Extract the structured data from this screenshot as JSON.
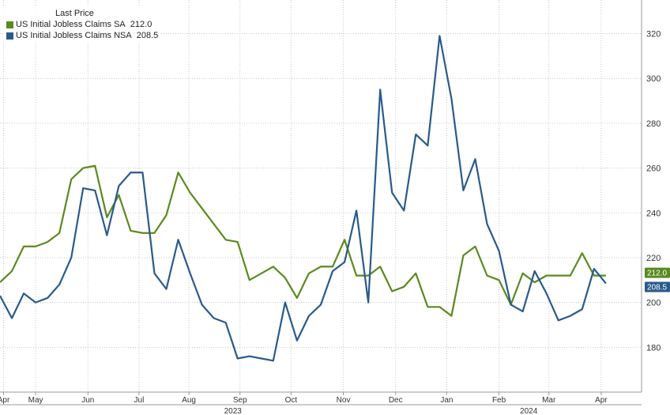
{
  "chart_data": {
    "type": "line",
    "legend_header": "Last Price",
    "legend_position": "top-left",
    "grid": true,
    "ylim": [
      160,
      335
    ],
    "yticks": [
      180,
      200,
      220,
      240,
      260,
      280,
      300,
      320
    ],
    "x_range": [
      0,
      54
    ],
    "months": [
      {
        "label": "Apr",
        "x": 0.3
      },
      {
        "label": "May",
        "x": 3.0
      },
      {
        "label": "Jun",
        "x": 7.4
      },
      {
        "label": "Jul",
        "x": 11.7
      },
      {
        "label": "Aug",
        "x": 15.9
      },
      {
        "label": "Sep",
        "x": 20.2
      },
      {
        "label": "Oct",
        "x": 24.5
      },
      {
        "label": "Nov",
        "x": 28.9
      },
      {
        "label": "Dec",
        "x": 33.3
      },
      {
        "label": "Jan",
        "x": 37.6
      },
      {
        "label": "Feb",
        "x": 42.0
      },
      {
        "label": "Mar",
        "x": 46.2
      },
      {
        "label": "Apr",
        "x": 50.6
      }
    ],
    "years": [
      {
        "label": "2023",
        "x": 19.6
      },
      {
        "label": "2024",
        "x": 44.5
      }
    ],
    "series": [
      {
        "name": "US Initial Jobless Claims SA",
        "last": "212.0",
        "color": "#5a8a1e",
        "x": [
          0,
          1,
          2,
          3,
          4,
          5,
          6,
          7,
          8,
          9,
          10,
          11,
          12,
          13,
          14,
          15,
          16,
          17,
          18,
          19,
          20,
          21,
          22,
          23,
          24,
          25,
          26,
          27,
          28,
          29,
          30,
          31,
          32,
          33,
          34,
          35,
          36,
          37,
          38,
          39,
          40,
          41,
          42,
          43,
          44,
          45,
          46,
          47,
          48,
          49,
          50,
          51
        ],
        "values": [
          209,
          214,
          225,
          225,
          227,
          231,
          255,
          260,
          261,
          238,
          248,
          232,
          231,
          231,
          239,
          258,
          249,
          242,
          235,
          228,
          227,
          210,
          213,
          216,
          211,
          202,
          213,
          216,
          216,
          228,
          212,
          212,
          216,
          205,
          207,
          213,
          198,
          198,
          194,
          221,
          225,
          212,
          210,
          199,
          213,
          209,
          212,
          212,
          212,
          222,
          212,
          212
        ]
      },
      {
        "name": "US Initial Jobless Claims NSA",
        "last": "208.5",
        "color": "#2a5a8c",
        "x": [
          0,
          1,
          2,
          3,
          4,
          5,
          6,
          7,
          8,
          9,
          10,
          11,
          12,
          13,
          14,
          15,
          16,
          17,
          18,
          19,
          20,
          21,
          22,
          23,
          24,
          25,
          26,
          27,
          28,
          29,
          30,
          31,
          32,
          33,
          34,
          35,
          36,
          37,
          38,
          39,
          40,
          41,
          42,
          43,
          44,
          45,
          46,
          47,
          48,
          49,
          50,
          51
        ],
        "values": [
          203,
          193,
          204,
          200,
          202,
          208,
          220,
          251,
          250,
          230,
          252,
          258,
          258,
          213,
          206,
          228,
          213,
          199,
          193,
          191,
          175,
          176,
          175,
          174,
          200,
          183,
          194,
          199,
          214,
          218,
          241,
          200,
          295,
          249,
          241,
          275,
          270,
          319,
          291,
          250,
          264,
          235,
          223,
          199,
          196,
          214,
          204,
          192,
          194,
          197,
          215,
          208.5
        ]
      }
    ]
  }
}
